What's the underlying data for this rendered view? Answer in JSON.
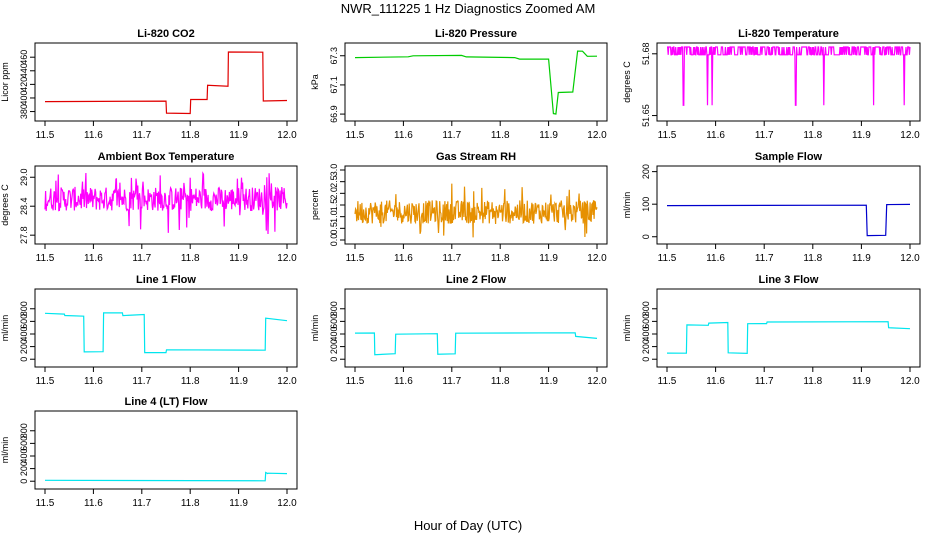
{
  "figure": {
    "title": "NWR_111225  1 Hz Diagnostics Zoomed AM",
    "xlabel": "Hour of Day (UTC)"
  },
  "chart_data": [
    {
      "type": "line",
      "title": "Li-820 CO2",
      "ylabel": "Licor ppm",
      "color": "#e00000",
      "xlim": [
        11.5,
        12.0
      ],
      "xticks": [
        "11.5",
        "11.6",
        "11.7",
        "11.8",
        "11.9",
        "12.0"
      ],
      "ylim": [
        372,
        475
      ],
      "yticks": [
        "380",
        "400",
        "420",
        "440",
        "460"
      ],
      "series": [
        {
          "x": [
            11.5,
            11.75,
            11.751,
            11.8,
            11.801,
            11.835,
            11.836,
            11.878,
            11.879,
            11.95,
            11.951,
            12.0
          ],
          "y": [
            395,
            395,
            378,
            378,
            398,
            398,
            418,
            418,
            468,
            468,
            396,
            396
          ]
        }
      ]
    },
    {
      "type": "line",
      "title": "Li-820 Pressure",
      "ylabel": "kPa",
      "color": "#00cc00",
      "xlim": [
        11.5,
        12.0
      ],
      "xticks": [
        "11.5",
        "11.6",
        "11.7",
        "11.8",
        "11.9",
        "12.0"
      ],
      "ylim": [
        66.88,
        67.36
      ],
      "yticks": [
        "66.9",
        "67.1",
        "67.3"
      ],
      "series": [
        {
          "x": [
            11.5,
            11.61,
            11.62,
            11.72,
            11.73,
            11.83,
            11.84,
            11.9,
            11.91,
            11.915,
            11.92,
            11.95,
            11.96,
            11.97,
            11.98,
            12.0
          ],
          "y": [
            67.29,
            67.29,
            67.3,
            67.3,
            67.29,
            67.29,
            67.28,
            67.28,
            66.9,
            66.9,
            67.05,
            67.05,
            67.33,
            67.33,
            67.3,
            67.3
          ]
        }
      ]
    },
    {
      "type": "line",
      "title": "Li-820 Temperature",
      "ylabel": "degrees C",
      "color": "#ff00ff",
      "xlim": [
        11.5,
        12.0
      ],
      "xticks": [
        "11.5",
        "11.6",
        "11.7",
        "11.8",
        "11.9",
        "12.0"
      ],
      "ylim": [
        51.6493,
        51.6833
      ],
      "yticks": [
        "51.65",
        "51.68"
      ],
      "pattern": {
        "base": 51.6805,
        "min": 51.6795,
        "max": 51.6833,
        "dips": [
          [
            11.534,
            51.655
          ],
          [
            11.583,
            51.655
          ],
          [
            11.593,
            51.655
          ],
          [
            11.765,
            51.655
          ],
          [
            11.823,
            51.655
          ],
          [
            11.925,
            51.655
          ],
          [
            11.988,
            51.655
          ]
        ]
      }
    },
    {
      "type": "line",
      "title": "Ambient Box Temperature",
      "ylabel": "degrees C",
      "color": "#ff00ff",
      "xlim": [
        11.5,
        12.0
      ],
      "xticks": [
        "11.5",
        "11.6",
        "11.7",
        "11.8",
        "11.9",
        "12.0"
      ],
      "ylim": [
        27.7,
        29.15
      ],
      "yticks": [
        "27.8",
        "28.4",
        "29.0"
      ],
      "pattern": {
        "base": 28.55,
        "min": 28.3,
        "max": 28.8,
        "spikes_high": 29.1,
        "spikes_low": 27.8
      }
    },
    {
      "type": "line",
      "title": "Gas Stream RH",
      "ylabel": "percent",
      "color": "#e69000",
      "xlim": [
        11.5,
        12.0
      ],
      "xticks": [
        "11.5",
        "11.6",
        "11.7",
        "11.8",
        "11.9",
        "12.0"
      ],
      "ylim": [
        0,
        3.0
      ],
      "yticks": [
        "0.0",
        "0.5",
        "1.0",
        "1.5",
        "2.0",
        "2.5",
        "3.0"
      ],
      "pattern": {
        "base": 1.2,
        "min": 0.7,
        "max": 1.7,
        "spikes_high": 2.5,
        "spikes_low": 0.1
      }
    },
    {
      "type": "line",
      "title": "Sample Flow",
      "ylabel": "ml/min",
      "color": "#0000cc",
      "xlim": [
        11.5,
        12.0
      ],
      "xticks": [
        "11.5",
        "11.6",
        "11.7",
        "11.8",
        "11.9",
        "12.0"
      ],
      "ylim": [
        -10,
        205
      ],
      "yticks": [
        "0",
        "100",
        "200"
      ],
      "series": [
        {
          "x": [
            11.5,
            11.91,
            11.912,
            11.95,
            11.952,
            12.0
          ],
          "y": [
            97,
            97,
            3,
            3,
            100,
            100
          ]
        }
      ]
    },
    {
      "type": "line",
      "title": "Line 1 Flow",
      "ylabel": "ml/min",
      "color": "#00e5ee",
      "xlim": [
        11.5,
        12.0
      ],
      "xticks": [
        "11.5",
        "11.6",
        "11.7",
        "11.8",
        "11.9",
        "12.0"
      ],
      "ylim": [
        -60,
        1050
      ],
      "yticks": [
        "0",
        "200",
        "400",
        "600",
        "800"
      ],
      "series": [
        {
          "x": [
            11.5,
            11.54,
            11.541,
            11.58,
            11.581,
            11.62,
            11.621,
            11.66,
            11.661,
            11.705,
            11.706,
            11.75,
            11.751,
            11.955,
            11.956,
            12.0
          ],
          "y": [
            720,
            720,
            690,
            690,
            110,
            110,
            740,
            740,
            700,
            700,
            110,
            110,
            150,
            150,
            650,
            620
          ]
        }
      ]
    },
    {
      "type": "line",
      "title": "Line 2 Flow",
      "ylabel": "ml/min",
      "color": "#00e5ee",
      "xlim": [
        11.5,
        12.0
      ],
      "xticks": [
        "11.5",
        "11.6",
        "11.7",
        "11.8",
        "11.9",
        "12.0"
      ],
      "ylim": [
        -60,
        1050
      ],
      "yticks": [
        "0",
        "200",
        "400",
        "600",
        "800"
      ],
      "series": [
        {
          "x": [
            11.5,
            11.54,
            11.541,
            11.583,
            11.584,
            11.67,
            11.671,
            11.707,
            11.708,
            11.955,
            11.956,
            12.0
          ],
          "y": [
            410,
            410,
            80,
            80,
            400,
            400,
            80,
            80,
            420,
            420,
            360,
            330
          ]
        }
      ]
    },
    {
      "type": "line",
      "title": "Line 3 Flow",
      "ylabel": "ml/min",
      "color": "#00e5ee",
      "xlim": [
        11.5,
        12.0
      ],
      "xticks": [
        "11.5",
        "11.6",
        "11.7",
        "11.8",
        "11.9",
        "12.0"
      ],
      "ylim": [
        -60,
        1050
      ],
      "yticks": [
        "0",
        "200",
        "400",
        "600",
        "800"
      ],
      "series": [
        {
          "x": [
            11.5,
            11.54,
            11.541,
            11.585,
            11.586,
            11.625,
            11.626,
            11.665,
            11.666,
            11.705,
            11.706,
            11.955,
            11.956,
            12.0
          ],
          "y": [
            100,
            100,
            540,
            540,
            580,
            580,
            100,
            100,
            560,
            560,
            590,
            590,
            500,
            480
          ]
        }
      ]
    },
    {
      "type": "line",
      "title": "Line 4 (LT) Flow",
      "ylabel": "ml/min",
      "color": "#00e5ee",
      "xlim": [
        11.5,
        12.0
      ],
      "xticks": [
        "11.5",
        "11.6",
        "11.7",
        "11.8",
        "11.9",
        "12.0"
      ],
      "ylim": [
        -60,
        1050
      ],
      "yticks": [
        "0",
        "200",
        "400",
        "600",
        "800"
      ],
      "series": [
        {
          "x": [
            11.5,
            11.955,
            11.956,
            11.96,
            11.961,
            12.0
          ],
          "y": [
            5,
            5,
            130,
            130,
            120,
            120
          ]
        }
      ]
    }
  ]
}
